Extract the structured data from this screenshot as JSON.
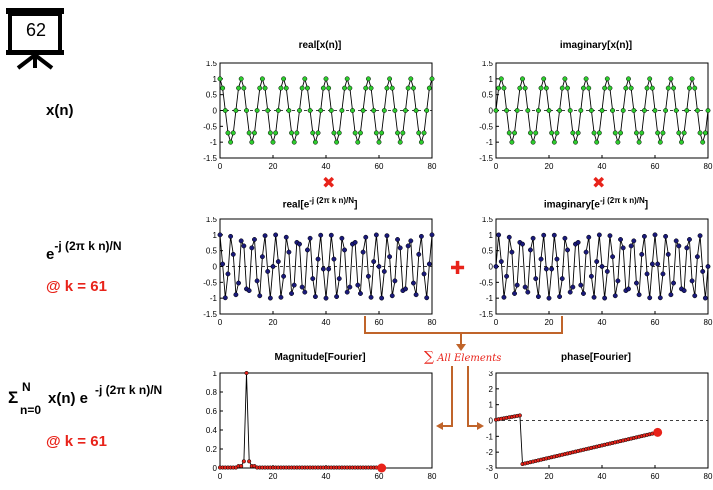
{
  "slide_number": "62",
  "labels": {
    "xn": "x(n)",
    "exp_base": "e",
    "exp_power": "-j (2π k n)/N",
    "at_k1": "@ k = 61",
    "sum_sigma": "Σ",
    "sum_top": "N",
    "sum_bottom": "n=0",
    "sum_body": "x(n) e",
    "sum_power": "-j (2π k n)/N",
    "at_k2": "@ k = 61"
  },
  "annotations": {
    "sum_all": "All Elements",
    "sum_sym": "∑",
    "times_sym": "✖",
    "plus_sym": "✚"
  },
  "colors": {
    "green": "#2ecc2e",
    "navy": "#1a1a7a",
    "red": "#e8231a",
    "orange": "#c0642a"
  },
  "chart_data": [
    {
      "id": "real_x",
      "type": "line",
      "title": "real[x(n)]",
      "xlim": [
        0,
        80
      ],
      "ylim": [
        -1.5,
        1.5
      ],
      "xticks": [
        0,
        20,
        40,
        60,
        80
      ],
      "yticks": [
        1.5,
        1,
        0.5,
        0,
        -0.5,
        -1,
        -1.5
      ],
      "marker": "green",
      "signal": {
        "kind": "cos",
        "freq": 10,
        "N": 80,
        "n": [
          0,
          80
        ]
      }
    },
    {
      "id": "imag_x",
      "type": "line",
      "title": "imaginary[x(n)]",
      "xlim": [
        0,
        80
      ],
      "ylim": [
        -1.5,
        1.5
      ],
      "xticks": [
        0,
        20,
        40,
        60,
        80
      ],
      "yticks": [
        1.5,
        1,
        0.5,
        0,
        -0.5,
        -1,
        -1.5
      ],
      "marker": "green",
      "signal": {
        "kind": "sin",
        "freq": 10,
        "N": 80,
        "n": [
          0,
          80
        ]
      }
    },
    {
      "id": "real_e",
      "type": "line",
      "title": "real[e",
      "title_sup": "-j (2π k n)/N",
      "title_end": "]",
      "xlim": [
        0,
        80
      ],
      "ylim": [
        -1.5,
        1.5
      ],
      "xticks": [
        0,
        20,
        40,
        60,
        80
      ],
      "yticks": [
        1.5,
        1,
        0.5,
        0,
        -0.5,
        -1,
        -1.5
      ],
      "marker": "navy",
      "signal": {
        "kind": "cos",
        "freq": 61,
        "N": 80,
        "n": [
          0,
          80
        ]
      }
    },
    {
      "id": "imag_e",
      "type": "line",
      "title": "imaginary[e",
      "title_sup": "-j (2π k n)/N",
      "title_end": "]",
      "xlim": [
        0,
        80
      ],
      "ylim": [
        -1.5,
        1.5
      ],
      "xticks": [
        0,
        20,
        40,
        60,
        80
      ],
      "yticks": [
        1.5,
        1,
        0.5,
        0,
        -0.5,
        -1,
        -1.5
      ],
      "marker": "navy",
      "signal": {
        "kind": "nsin",
        "freq": 61,
        "N": 80,
        "n": [
          0,
          80
        ]
      }
    },
    {
      "id": "mag",
      "type": "line",
      "title": "Magnitude[Fourier]",
      "xlim": [
        0,
        80
      ],
      "ylim": [
        0,
        1
      ],
      "xticks": [
        0,
        20,
        40,
        60,
        80
      ],
      "yticks": [
        1,
        0.8,
        0.6,
        0.4,
        0.2,
        0
      ],
      "marker": "red",
      "signal": {
        "kind": "mag",
        "peak": 10,
        "N": 80,
        "n": [
          0,
          61
        ]
      },
      "highlight": {
        "x": 61,
        "y": 0
      }
    },
    {
      "id": "phase",
      "type": "line",
      "title": "phase[Fourier]",
      "xlim": [
        0,
        80
      ],
      "ylim": [
        -3,
        3
      ],
      "xticks": [
        0,
        20,
        40,
        60,
        80
      ],
      "yticks": [
        3,
        2,
        1,
        0,
        -1,
        -2,
        -3
      ],
      "marker": "red",
      "signal": {
        "kind": "phase",
        "peak": 10,
        "N": 80,
        "n": [
          0,
          61
        ]
      },
      "highlight": {
        "x": 61,
        "y": -0.75
      }
    }
  ]
}
